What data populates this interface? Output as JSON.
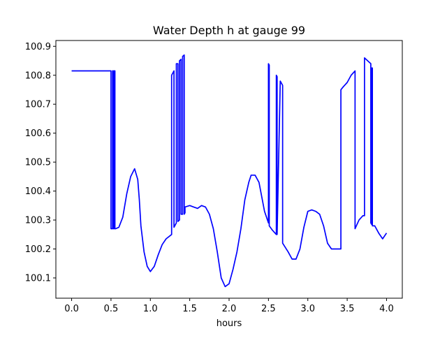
{
  "chart_data": {
    "type": "line",
    "title": "Water Depth h at gauge 99",
    "xlabel": "hours",
    "ylabel": "",
    "xlim": [
      -0.2,
      4.2
    ],
    "ylim": [
      100.03,
      100.92
    ],
    "xticks": [
      0.0,
      0.5,
      1.0,
      1.5,
      2.0,
      2.5,
      3.0,
      3.5,
      4.0
    ],
    "xtick_labels": [
      "0.0",
      "0.5",
      "1.0",
      "1.5",
      "2.0",
      "2.5",
      "3.0",
      "3.5",
      "4.0"
    ],
    "yticks": [
      100.1,
      100.2,
      100.3,
      100.4,
      100.5,
      100.6,
      100.7,
      100.8,
      100.9
    ],
    "ytick_labels": [
      "100.1",
      "100.2",
      "100.3",
      "100.4",
      "100.5",
      "100.6",
      "100.7",
      "100.8",
      "100.9"
    ],
    "grid": false,
    "legend": "none",
    "series": [
      {
        "color": "#0000ff",
        "x": [
          0.0,
          0.5,
          0.5,
          0.52,
          0.52,
          0.53,
          0.53,
          0.54,
          0.54,
          0.55,
          0.55,
          0.56,
          0.56,
          0.6,
          0.65,
          0.7,
          0.75,
          0.8,
          0.84,
          0.86,
          0.88,
          0.92,
          0.96,
          1.0,
          1.05,
          1.1,
          1.15,
          1.2,
          1.27,
          1.27,
          1.3,
          1.3,
          1.33,
          1.33,
          1.35,
          1.35,
          1.37,
          1.37,
          1.39,
          1.39,
          1.41,
          1.41,
          1.43,
          1.43,
          1.44,
          1.44,
          1.5,
          1.55,
          1.6,
          1.65,
          1.7,
          1.75,
          1.8,
          1.85,
          1.9,
          1.95,
          2.0,
          2.05,
          2.1,
          2.15,
          2.2,
          2.25,
          2.28,
          2.33,
          2.38,
          2.45,
          2.5,
          2.5,
          2.51,
          2.51,
          2.55,
          2.6,
          2.6,
          2.61,
          2.61,
          2.65,
          2.68,
          2.68,
          2.75,
          2.8,
          2.85,
          2.9,
          2.95,
          3.0,
          3.05,
          3.1,
          3.15,
          3.2,
          3.25,
          3.3,
          3.35,
          3.4,
          3.42,
          3.42,
          3.45,
          3.5,
          3.55,
          3.6,
          3.6,
          3.65,
          3.7,
          3.72,
          3.72,
          3.78,
          3.8,
          3.8,
          3.81,
          3.81,
          3.82,
          3.82,
          3.85,
          3.9,
          3.95,
          4.0
        ],
        "y": [
          100.815,
          100.815,
          100.27,
          100.27,
          100.815,
          100.815,
          100.27,
          100.27,
          100.815,
          100.815,
          100.27,
          100.27,
          100.27,
          100.275,
          100.31,
          100.39,
          100.45,
          100.477,
          100.44,
          100.37,
          100.28,
          100.19,
          100.14,
          100.122,
          100.14,
          100.18,
          100.215,
          100.235,
          100.25,
          100.8,
          100.815,
          100.275,
          100.29,
          100.84,
          100.84,
          100.295,
          100.3,
          100.85,
          100.855,
          100.32,
          100.32,
          100.865,
          100.87,
          100.32,
          100.325,
          100.345,
          100.35,
          100.345,
          100.34,
          100.35,
          100.345,
          100.32,
          100.27,
          100.19,
          100.1,
          100.07,
          100.08,
          100.13,
          100.19,
          100.27,
          100.37,
          100.43,
          100.455,
          100.455,
          100.43,
          100.33,
          100.29,
          100.84,
          100.835,
          100.28,
          100.265,
          100.25,
          100.8,
          100.795,
          100.25,
          100.78,
          100.765,
          100.22,
          100.19,
          100.165,
          100.165,
          100.2,
          100.275,
          100.33,
          100.335,
          100.33,
          100.32,
          100.28,
          100.22,
          100.2,
          100.2,
          100.2,
          100.2,
          100.75,
          100.76,
          100.775,
          100.8,
          100.815,
          100.27,
          100.3,
          100.315,
          100.315,
          100.86,
          100.845,
          100.84,
          100.29,
          100.285,
          100.825,
          100.825,
          100.28,
          100.28,
          100.255,
          100.235,
          100.255
        ]
      }
    ]
  }
}
